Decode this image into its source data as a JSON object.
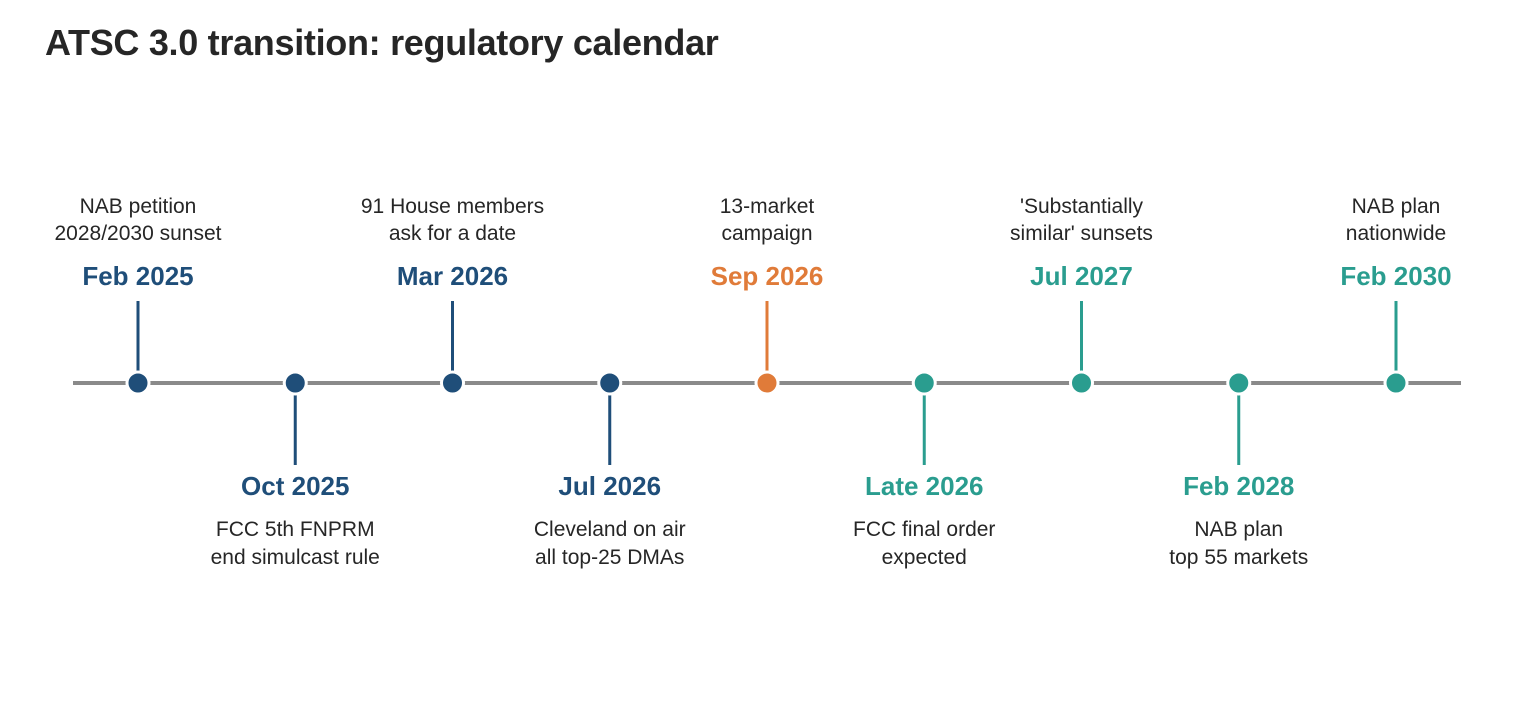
{
  "title": "ATSC 3.0 transition: regulatory calendar",
  "colors": {
    "axis": "#8a8a8a",
    "text": "#262626",
    "past": "#1f4e79",
    "current": "#e07b39",
    "future": "#2a9d8f"
  },
  "events": [
    {
      "date": "Feb 2025",
      "desc": [
        "NAB petition",
        "2028/2030 sunset"
      ],
      "side": "above",
      "status": "past"
    },
    {
      "date": "Oct 2025",
      "desc": [
        "FCC 5th FNPRM",
        "end simulcast rule"
      ],
      "side": "below",
      "status": "past"
    },
    {
      "date": "Mar 2026",
      "desc": [
        "91 House members",
        "ask for a date"
      ],
      "side": "above",
      "status": "past"
    },
    {
      "date": "Jul 2026",
      "desc": [
        "Cleveland on air",
        "all top-25 DMAs"
      ],
      "side": "below",
      "status": "past"
    },
    {
      "date": "Sep 2026",
      "desc": [
        "13-market",
        "campaign"
      ],
      "side": "above",
      "status": "current"
    },
    {
      "date": "Late 2026",
      "desc": [
        "FCC final order",
        "expected"
      ],
      "side": "below",
      "status": "future"
    },
    {
      "date": "Jul 2027",
      "desc": [
        "'Substantially",
        "similar' sunsets"
      ],
      "side": "above",
      "status": "future"
    },
    {
      "date": "Feb 2028",
      "desc": [
        "NAB plan",
        "top 55 markets"
      ],
      "side": "below",
      "status": "future"
    },
    {
      "date": "Feb 2030",
      "desc": [
        "NAB plan",
        "nationwide"
      ],
      "side": "above",
      "status": "future"
    }
  ]
}
